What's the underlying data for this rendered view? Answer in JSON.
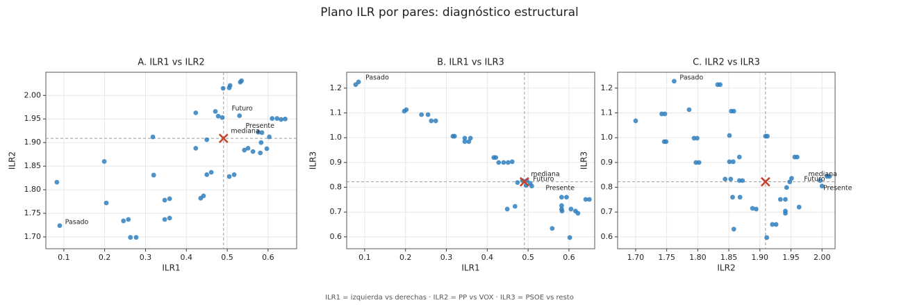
{
  "title": "Plano ILR por pares: diagnóstico estructural",
  "footnote": "ILR1 = izquierda vs derechas · ILR2 = PP vs VOX · ILR3 = PSOE vs resto",
  "chart_data": [
    {
      "type": "scatter",
      "title": "A. ILR1 vs ILR2",
      "xlabel": "ILR1",
      "ylabel": "ILR2",
      "color": "#2f7fbd",
      "grid": true,
      "xlim": [
        0.056,
        0.67
      ],
      "ylim": [
        1.675,
        2.049
      ],
      "xticks": [
        0.1,
        0.2,
        0.3,
        0.4,
        0.5,
        0.6
      ],
      "yticks": [
        {
          "value": 1.7,
          "label": "1.70"
        },
        {
          "value": 1.75,
          "label": "1.75"
        },
        {
          "value": 1.8,
          "label": "1.80"
        },
        {
          "value": 1.85,
          "label": "1.85"
        },
        {
          "value": 1.9,
          "label": "1.90"
        },
        {
          "value": 1.95,
          "label": "1.95"
        },
        {
          "value": 2.0,
          "label": "2.00"
        }
      ],
      "x": [
        0.083,
        0.09,
        0.199,
        0.204,
        0.246,
        0.258,
        0.263,
        0.277,
        0.318,
        0.32,
        0.347,
        0.359,
        0.347,
        0.359,
        0.423,
        0.423,
        0.435,
        0.442,
        0.45,
        0.45,
        0.461,
        0.471,
        0.478,
        0.488,
        0.49,
        0.505,
        0.507,
        0.505,
        0.517,
        0.532,
        0.535,
        0.53,
        0.542,
        0.551,
        0.563,
        0.576,
        0.585,
        0.583,
        0.581,
        0.597,
        0.603,
        0.61,
        0.622,
        0.632,
        0.642
      ],
      "values": [
        1.816,
        1.724,
        1.86,
        1.772,
        1.734,
        1.737,
        1.699,
        1.699,
        1.912,
        1.831,
        1.778,
        1.781,
        1.737,
        1.74,
        1.963,
        1.888,
        1.782,
        1.787,
        1.906,
        1.832,
        1.837,
        1.966,
        1.956,
        1.953,
        2.015,
        2.016,
        2.021,
        1.828,
        1.832,
        2.028,
        2.031,
        1.957,
        1.884,
        1.888,
        1.881,
        1.922,
        1.921,
        1.9,
        1.878,
        1.887,
        1.912,
        1.951,
        1.951,
        1.949,
        1.95
      ],
      "median": {
        "x": 0.491,
        "y": 1.909,
        "color": "#c8402a"
      },
      "annotations": [
        {
          "text": "Pasado",
          "x": 0.103,
          "y": 1.731
        },
        {
          "text": "Futuro",
          "x": 0.511,
          "y": 1.972
        },
        {
          "text": "Presente",
          "x": 0.545,
          "y": 1.935
        },
        {
          "text": "mediana",
          "x": 0.509,
          "y": 1.924
        }
      ]
    },
    {
      "type": "scatter",
      "title": "B. ILR1 vs ILR3",
      "xlabel": "ILR1",
      "ylabel": "ILR3",
      "color": "#2f7fbd",
      "grid": true,
      "xlim": [
        0.056,
        0.663
      ],
      "ylim": [
        0.552,
        1.264
      ],
      "xticks": [
        0.1,
        0.2,
        0.3,
        0.4,
        0.5,
        0.6
      ],
      "yticks": [
        0.6,
        0.7,
        0.8,
        0.9,
        {
          "value": 1,
          "label": "1.0"
        },
        1.1,
        1.2
      ],
      "x": [
        0.078,
        0.085,
        0.197,
        0.202,
        0.239,
        0.255,
        0.263,
        0.274,
        0.316,
        0.32,
        0.345,
        0.359,
        0.345,
        0.355,
        0.416,
        0.421,
        0.428,
        0.44,
        0.451,
        0.461,
        0.449,
        0.468,
        0.474,
        0.486,
        0.497,
        0.495,
        0.505,
        0.509,
        0.559,
        0.582,
        0.594,
        0.582,
        0.582,
        0.583,
        0.605,
        0.616,
        0.622,
        0.641,
        0.65,
        0.602
      ],
      "values": [
        1.214,
        1.225,
        1.107,
        1.113,
        1.093,
        1.093,
        1.068,
        1.068,
        1.006,
        1.006,
        0.998,
        0.998,
        0.984,
        0.984,
        0.92,
        0.92,
        0.9,
        0.9,
        0.9,
        0.903,
        0.712,
        0.723,
        0.819,
        0.827,
        0.827,
        0.807,
        0.816,
        0.805,
        0.634,
        0.76,
        0.76,
        0.726,
        0.712,
        0.704,
        0.712,
        0.704,
        0.695,
        0.751,
        0.751,
        0.597
      ],
      "median": {
        "x": 0.491,
        "y": 0.822,
        "color": "#c8402a"
      },
      "annotations": [
        {
          "text": "Pasado",
          "x": 0.102,
          "y": 1.242
        },
        {
          "text": "mediana",
          "x": 0.507,
          "y": 0.852
        },
        {
          "text": "Futuro",
          "x": 0.512,
          "y": 0.833
        },
        {
          "text": "Presente",
          "x": 0.543,
          "y": 0.796
        }
      ]
    },
    {
      "type": "scatter",
      "title": "C. ILR2 vs ILR3",
      "xlabel": "ILR2",
      "ylabel": "ILR3",
      "color": "#2f7fbd",
      "grid": true,
      "xlim": [
        1.671,
        2.021
      ],
      "ylim": [
        0.552,
        1.264
      ],
      "xticks": [
        {
          "value": 1.7,
          "label": "1.70"
        },
        {
          "value": 1.75,
          "label": "1.75"
        },
        {
          "value": 1.8,
          "label": "1.80"
        },
        {
          "value": 1.85,
          "label": "1.85"
        },
        {
          "value": 1.9,
          "label": "1.90"
        },
        {
          "value": 1.95,
          "label": "1.95"
        },
        {
          "value": 2.0,
          "label": "2.00"
        }
      ],
      "yticks": [
        0.6,
        0.7,
        0.8,
        0.9,
        {
          "value": 1,
          "label": "1.0"
        },
        1.1,
        1.2
      ],
      "x": [
        1.7,
        1.762,
        1.742,
        1.747,
        1.746,
        1.749,
        1.786,
        1.794,
        1.799,
        1.797,
        1.802,
        1.832,
        1.836,
        1.854,
        1.858,
        1.851,
        1.851,
        1.857,
        1.844,
        1.853,
        1.867,
        1.867,
        1.872,
        1.856,
        1.868,
        1.858,
        1.888,
        1.894,
        1.909,
        1.912,
        1.911,
        1.92,
        1.926,
        1.933,
        1.941,
        1.941,
        1.941,
        1.943,
        1.948,
        1.951,
        1.956,
        1.96,
        1.963,
        1.997,
        2.0,
        2.008,
        2.012
      ],
      "values": [
        1.068,
        1.228,
        1.096,
        1.096,
        0.984,
        0.984,
        1.113,
        0.998,
        0.998,
        0.9,
        0.9,
        1.214,
        1.214,
        1.107,
        1.107,
        1.009,
        0.903,
        0.903,
        0.833,
        0.833,
        0.922,
        0.827,
        0.827,
        0.76,
        0.76,
        0.631,
        0.715,
        0.712,
        1.006,
        1.006,
        0.597,
        0.65,
        0.65,
        0.751,
        0.751,
        0.704,
        0.695,
        0.799,
        0.822,
        0.836,
        0.922,
        0.922,
        0.72,
        0.827,
        0.805,
        0.844,
        0.844
      ],
      "median": {
        "x": 1.909,
        "y": 0.822,
        "color": "#c8402a"
      },
      "annotations": [
        {
          "text": "Pasado",
          "x": 1.771,
          "y": 1.242
        },
        {
          "text": "mediana",
          "x": 1.978,
          "y": 0.852
        },
        {
          "text": "Futuro",
          "x": 1.971,
          "y": 0.833
        },
        {
          "text": "Presente",
          "x": 2.002,
          "y": 0.796
        }
      ]
    }
  ]
}
